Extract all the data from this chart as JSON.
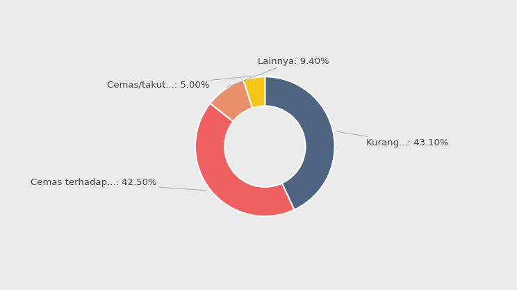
{
  "label_texts": [
    "Kurang...: 43.10%",
    "Cemas terhadap...: 42.50%",
    "Lainnya: 9.40%",
    "Cemas/takut...: 5.00%"
  ],
  "values": [
    43.1,
    42.5,
    9.4,
    5.0
  ],
  "colors": [
    "#4e6480",
    "#f06060",
    "#e8906a",
    "#f5c518"
  ],
  "background_color": "#ebebeb",
  "label_fontsize": 9.5,
  "label_color": "#444444"
}
